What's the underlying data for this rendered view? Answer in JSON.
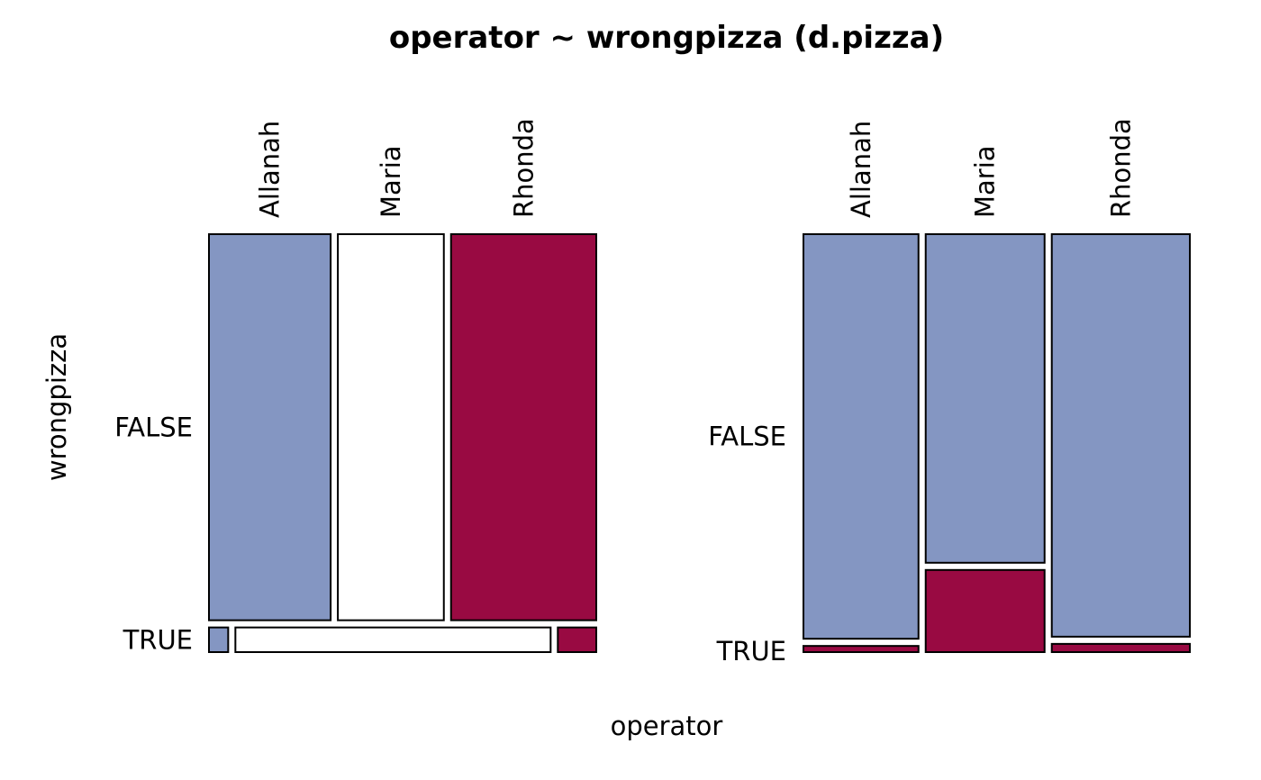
{
  "chart_data": {
    "type": "mosaic",
    "title": "operator ~ wrongpizza (d.pizza)",
    "xlabel": "operator",
    "ylabel": "wrongpizza",
    "panels": [
      {
        "name": "",
        "categories": [
          "Allanah",
          "Maria",
          "Rhonda"
        ],
        "levels": [
          "FALSE",
          "TRUE"
        ],
        "row_share": [
          0.94,
          0.06
        ],
        "cell_shares": {
          "FALSE": [
            0.31,
            0.27,
            0.37
          ],
          "TRUE": [
            0.05,
            0.82,
            0.1
          ]
        },
        "fills": {
          "FALSE": [
            "#8496C2",
            "#FFFFFF",
            "#990A42"
          ],
          "TRUE": [
            "#8496C2",
            "#FFFFFF",
            "#990A42"
          ]
        }
      },
      {
        "name": "",
        "categories": [
          "Allanah",
          "Maria",
          "Rhonda"
        ],
        "levels": [
          "FALSE",
          "TRUE"
        ],
        "column_share": [
          0.3,
          0.31,
          0.36
        ],
        "within_share": {
          "Allanah": [
            0.985,
            0.015
          ],
          "Maria": [
            0.8,
            0.2
          ],
          "Rhonda": [
            0.98,
            0.02
          ]
        },
        "fills": {
          "FALSE": "#8496C2",
          "TRUE": "#990A42"
        }
      }
    ]
  }
}
